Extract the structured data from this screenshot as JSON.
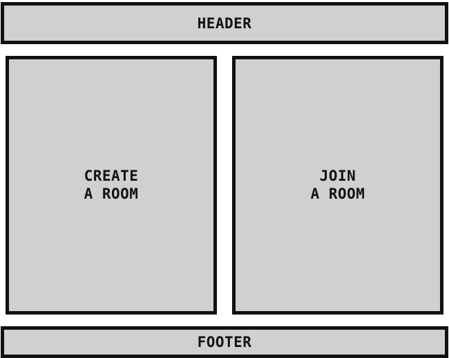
{
  "header": {
    "label": "HEADER"
  },
  "create_room": {
    "line1": "CREATE",
    "line2": "A ROOM"
  },
  "join_room": {
    "line1": "JOIN",
    "line2": "A ROOM"
  },
  "footer": {
    "label": "FOOTER"
  }
}
